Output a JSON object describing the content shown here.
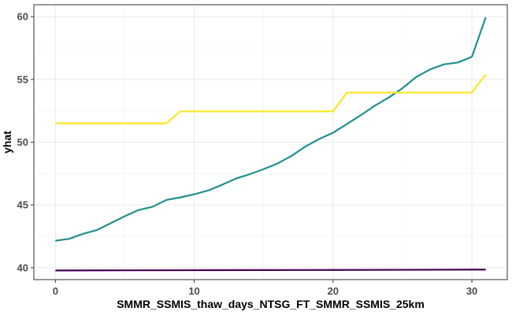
{
  "chart_data": {
    "type": "line",
    "xlabel": "SMMR_SSMIS_thaw_days_NTSG_FT_SMMR_SSMIS_25km",
    "ylabel": "yhat",
    "xlim": [
      -1.55,
      32.55
    ],
    "ylim": [
      39.05,
      60.95
    ],
    "xticks": [
      0,
      10,
      20,
      30
    ],
    "yticks": [
      40,
      45,
      50,
      55,
      60
    ],
    "grid": true,
    "legend": "none",
    "series": [
      {
        "color": "#21908C",
        "x": [
          0,
          1,
          2,
          3,
          4,
          5,
          6,
          7,
          8,
          9,
          10,
          11,
          12,
          13,
          14,
          15,
          16,
          17,
          18,
          19,
          20,
          21,
          22,
          23,
          24,
          25,
          26,
          27,
          28,
          29,
          30,
          31
        ],
        "y": [
          42.15,
          42.3,
          42.7,
          43.0,
          43.55,
          44.1,
          44.6,
          44.85,
          45.4,
          45.6,
          45.85,
          46.15,
          46.6,
          47.1,
          47.45,
          47.85,
          48.3,
          48.9,
          49.65,
          50.25,
          50.75,
          51.45,
          52.15,
          52.9,
          53.55,
          54.3,
          55.2,
          55.8,
          56.2,
          56.35,
          56.8,
          59.95
        ]
      },
      {
        "color": "#FDE725",
        "x": [
          0,
          8,
          9,
          20,
          21,
          30,
          31
        ],
        "y": [
          51.5,
          51.5,
          52.45,
          52.45,
          53.95,
          53.95,
          55.4
        ]
      },
      {
        "color": "#440154",
        "x": [
          0,
          5,
          10,
          15,
          20,
          25,
          31
        ],
        "y": [
          39.78,
          39.79,
          39.8,
          39.81,
          39.82,
          39.83,
          39.85
        ]
      }
    ]
  }
}
